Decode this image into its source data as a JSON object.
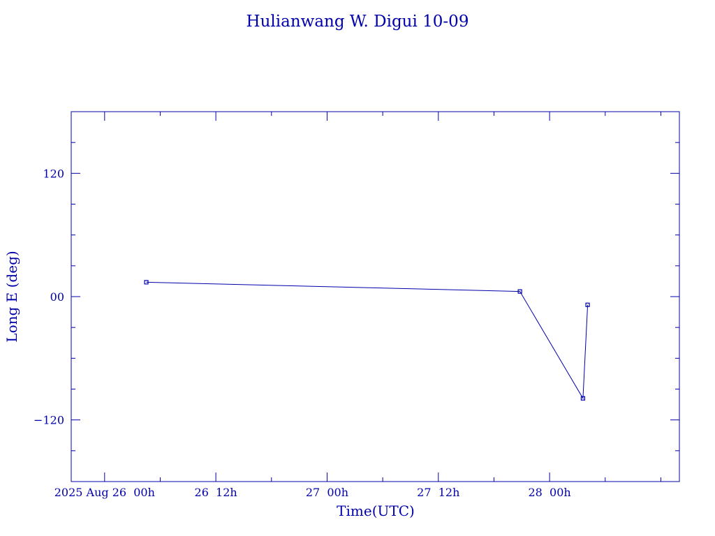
{
  "chart_data": {
    "type": "line",
    "title": "Hulianwang W. Digui 10-09",
    "xlabel": "Time(UTC)",
    "ylabel": "Long E (deg)",
    "x_unit": "UTC time, 2025 Aug 26 00h reference",
    "x_tick_labels": [
      "2025 Aug 26  00h",
      "26  12h",
      "27  00h",
      "27  12h",
      "28  00h"
    ],
    "x_tick_values_hours": [
      0,
      12,
      24,
      36,
      48
    ],
    "xlim_hours": [
      -3.6,
      62
    ],
    "ylim": [
      -180,
      180
    ],
    "y_ticks": [
      -120,
      0,
      120
    ],
    "y_tick_labels": [
      "−120",
      "00",
      "120"
    ],
    "grid": false,
    "line_color": "#0000aa",
    "points": [
      {
        "x_hours": 4.5,
        "y": 14
      },
      {
        "x_hours": 44.8,
        "y": 5
      },
      {
        "x_hours": 51.6,
        "y": -99
      },
      {
        "x_hours": 52.1,
        "y": -8
      }
    ]
  }
}
